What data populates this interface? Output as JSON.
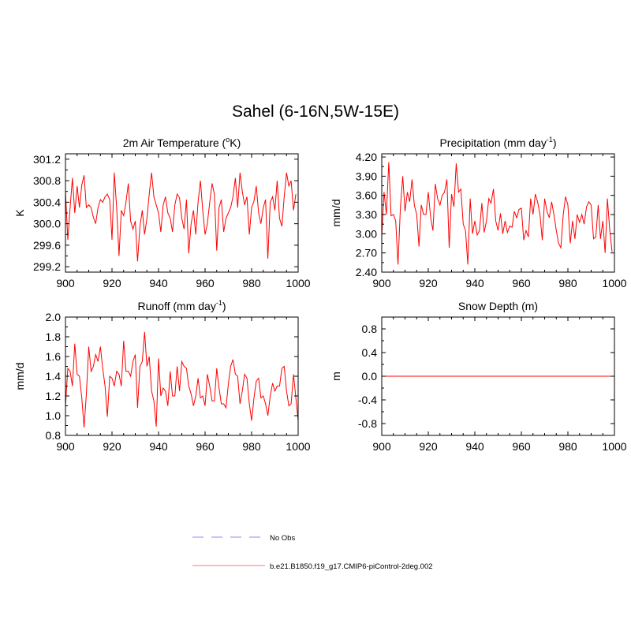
{
  "figure_title": "Sahel (6-16N,5W-15E)",
  "colors": {
    "model": "#ff0000",
    "obs": "#a0a0ff",
    "axis": "#000000",
    "legend_model": "#ff9090"
  },
  "legend": [
    {
      "label": "No Obs",
      "style": "dashed",
      "color": "#a0a0ff"
    },
    {
      "label": "b.e21.B1850.f19_g17.CMIP6-piControl-2deg.002",
      "style": "solid",
      "color": "#ff9090"
    }
  ],
  "chart_data": [
    {
      "type": "line",
      "title": "2m Air Temperature (",
      "title_sup": "o",
      "title_end": "K)",
      "ylabel": "K",
      "xlim": [
        900,
        1000
      ],
      "ylim": [
        299.1,
        301.3
      ],
      "xticks": [
        900,
        920,
        940,
        960,
        980,
        1000
      ],
      "yticks": [
        299.2,
        299.6,
        300.0,
        300.4,
        300.8,
        301.2
      ],
      "ytick_labels": [
        "299.2",
        "299.6",
        "300.0",
        "300.4",
        "300.8",
        "301.2"
      ],
      "series": [
        {
          "name": "b.e21.B1850.f19_g17.CMIP6-piControl-2deg.002",
          "x_start": 900,
          "values": [
            300.6,
            299.7,
            300.3,
            300.85,
            300.2,
            300.7,
            300.3,
            300.72,
            300.9,
            300.3,
            300.35,
            300.3,
            300.12,
            300.0,
            300.3,
            300.45,
            300.4,
            300.5,
            300.55,
            300.45,
            299.7,
            300.95,
            300.3,
            299.4,
            300.25,
            300.15,
            300.4,
            300.75,
            300.05,
            299.9,
            300.05,
            299.3,
            299.95,
            300.25,
            299.8,
            300.1,
            300.55,
            300.95,
            300.5,
            300.35,
            300.2,
            299.85,
            300.35,
            300.5,
            300.2,
            300.1,
            299.85,
            300.35,
            300.55,
            300.48,
            300.1,
            299.9,
            300.45,
            299.45,
            300.0,
            300.25,
            299.8,
            300.4,
            300.8,
            300.25,
            299.8,
            300.0,
            300.4,
            300.75,
            300.55,
            299.5,
            300.3,
            300.45,
            299.85,
            300.1,
            300.2,
            300.3,
            300.5,
            300.85,
            300.3,
            300.95,
            300.6,
            300.35,
            300.5,
            299.8,
            300.3,
            300.42,
            300.7,
            300.2,
            300.0,
            300.3,
            300.45,
            299.35,
            300.4,
            300.5,
            300.25,
            300.8,
            300.1,
            299.95,
            300.5,
            300.95,
            300.7,
            300.8,
            300.25,
            300.55
          ]
        }
      ]
    },
    {
      "type": "line",
      "title": "Precipitation (mm day",
      "title_sup": "-1",
      "title_end": ")",
      "ylabel": "mm/d",
      "xlim": [
        900,
        1000
      ],
      "ylim": [
        2.4,
        4.25
      ],
      "xticks": [
        900,
        920,
        940,
        960,
        980,
        1000
      ],
      "yticks": [
        2.4,
        2.7,
        3.0,
        3.3,
        3.6,
        3.9,
        4.2
      ],
      "ytick_labels": [
        "2.40",
        "2.70",
        "3.00",
        "3.30",
        "3.60",
        "3.90",
        "4.20"
      ],
      "series": [
        {
          "name": "b.e21.B1850.f19_g17.CMIP6-piControl-2deg.002",
          "x_start": 900,
          "values": [
            2.95,
            3.65,
            3.3,
            4.12,
            3.28,
            3.3,
            3.2,
            2.52,
            3.4,
            3.9,
            3.35,
            3.65,
            3.5,
            3.85,
            3.45,
            3.3,
            2.8,
            3.45,
            3.3,
            3.3,
            3.65,
            3.25,
            3.05,
            3.78,
            3.55,
            3.45,
            3.6,
            3.65,
            3.85,
            2.78,
            3.62,
            3.42,
            4.1,
            3.65,
            3.7,
            3.15,
            3.05,
            2.52,
            3.55,
            3.0,
            3.2,
            2.98,
            3.05,
            3.48,
            3.02,
            3.2,
            3.55,
            3.48,
            3.7,
            3.2,
            3.05,
            3.32,
            3.0,
            3.2,
            3.02,
            3.12,
            3.1,
            3.35,
            3.25,
            3.38,
            3.4,
            2.9,
            3.05,
            2.95,
            3.55,
            3.3,
            3.62,
            3.5,
            3.3,
            2.9,
            3.55,
            3.35,
            3.25,
            3.5,
            3.3,
            3.05,
            2.85,
            2.78,
            3.3,
            3.58,
            3.45,
            2.85,
            3.2,
            2.92,
            3.3,
            3.18,
            3.3,
            3.15,
            3.42,
            3.5,
            3.45,
            2.92,
            2.95,
            3.45,
            2.92,
            3.2,
            2.7,
            3.55,
            3.05,
            2.72
          ]
        }
      ]
    },
    {
      "type": "line",
      "title": "Runoff (mm day",
      "title_sup": "-1",
      "title_end": ")",
      "ylabel": "mm/d",
      "xlim": [
        900,
        1000
      ],
      "ylim": [
        0.8,
        2.0
      ],
      "xticks": [
        900,
        920,
        940,
        960,
        980,
        1000
      ],
      "yticks": [
        0.8,
        1.0,
        1.2,
        1.4,
        1.6,
        1.8,
        2.0
      ],
      "ytick_labels": [
        "0.8",
        "1.0",
        "1.2",
        "1.4",
        "1.6",
        "1.8",
        "2.0"
      ],
      "series": [
        {
          "name": "b.e21.B1850.f19_g17.CMIP6-piControl-2deg.002",
          "x_start": 900,
          "values": [
            1.1,
            1.48,
            1.45,
            1.3,
            1.73,
            1.42,
            1.4,
            1.18,
            0.88,
            1.22,
            1.7,
            1.45,
            1.5,
            1.62,
            1.55,
            1.7,
            1.48,
            1.3,
            0.99,
            1.4,
            1.38,
            1.3,
            1.45,
            1.42,
            1.3,
            1.76,
            1.45,
            1.45,
            1.4,
            1.55,
            1.62,
            1.08,
            1.5,
            1.55,
            1.85,
            1.5,
            1.6,
            1.25,
            1.15,
            0.89,
            1.58,
            1.2,
            1.28,
            1.25,
            1.1,
            1.45,
            1.2,
            1.2,
            1.5,
            1.25,
            1.55,
            1.5,
            1.48,
            1.3,
            1.22,
            1.1,
            1.2,
            1.38,
            1.18,
            1.2,
            1.1,
            1.42,
            1.3,
            1.15,
            1.15,
            1.48,
            1.28,
            1.12,
            1.12,
            1.08,
            1.32,
            1.5,
            1.57,
            1.42,
            1.4,
            1.12,
            1.25,
            1.42,
            1.38,
            1.12,
            0.95,
            1.18,
            1.35,
            1.38,
            1.18,
            1.2,
            1.12,
            1.0,
            1.2,
            1.33,
            1.25,
            1.3,
            1.3,
            1.48,
            1.5,
            1.25,
            1.1,
            1.12,
            1.42,
            1.18,
            0.95
          ]
        }
      ]
    },
    {
      "type": "line",
      "title": "Snow Depth (m)",
      "title_sup": "",
      "title_end": "",
      "ylabel": "m",
      "xlim": [
        900,
        1000
      ],
      "ylim": [
        -1.0,
        1.0
      ],
      "xticks": [
        900,
        920,
        940,
        960,
        980,
        1000
      ],
      "yticks": [
        -0.8,
        -0.4,
        0.0,
        0.4,
        0.8
      ],
      "ytick_labels": [
        "-0.8",
        "-0.4",
        "0.0",
        "0.4",
        "0.8"
      ],
      "series": [
        {
          "name": "b.e21.B1850.f19_g17.CMIP6-piControl-2deg.002",
          "x_start": 900,
          "constant": 0.0,
          "n": 100
        }
      ]
    }
  ]
}
